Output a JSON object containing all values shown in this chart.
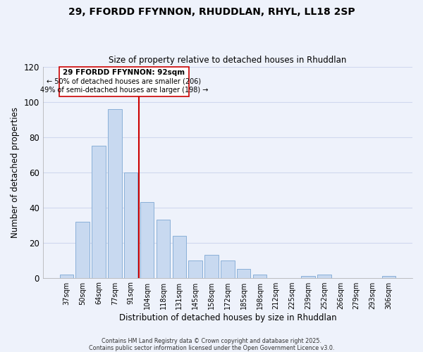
{
  "title": "29, FFORDD FFYNNON, RHUDDLAN, RHYL, LL18 2SP",
  "subtitle": "Size of property relative to detached houses in Rhuddlan",
  "xlabel": "Distribution of detached houses by size in Rhuddlan",
  "ylabel": "Number of detached properties",
  "bar_color": "#c8d9f0",
  "bar_edge_color": "#8ab0d8",
  "background_color": "#eef2fb",
  "grid_color": "#d0d8ee",
  "categories": [
    "37sqm",
    "50sqm",
    "64sqm",
    "77sqm",
    "91sqm",
    "104sqm",
    "118sqm",
    "131sqm",
    "145sqm",
    "158sqm",
    "172sqm",
    "185sqm",
    "198sqm",
    "212sqm",
    "225sqm",
    "239sqm",
    "252sqm",
    "266sqm",
    "279sqm",
    "293sqm",
    "306sqm"
  ],
  "values": [
    2,
    32,
    75,
    96,
    60,
    43,
    33,
    24,
    10,
    13,
    10,
    5,
    2,
    0,
    0,
    1,
    2,
    0,
    0,
    0,
    1
  ],
  "vline_x": 4.5,
  "vline_color": "#cc0000",
  "ylim": [
    0,
    120
  ],
  "yticks": [
    0,
    20,
    40,
    60,
    80,
    100,
    120
  ],
  "annotation_title": "29 FFORDD FFYNNON: 92sqm",
  "annotation_line1": "← 50% of detached houses are smaller (206)",
  "annotation_line2": "49% of semi-detached houses are larger (198) →",
  "footer1": "Contains HM Land Registry data © Crown copyright and database right 2025.",
  "footer2": "Contains public sector information licensed under the Open Government Licence v3.0."
}
